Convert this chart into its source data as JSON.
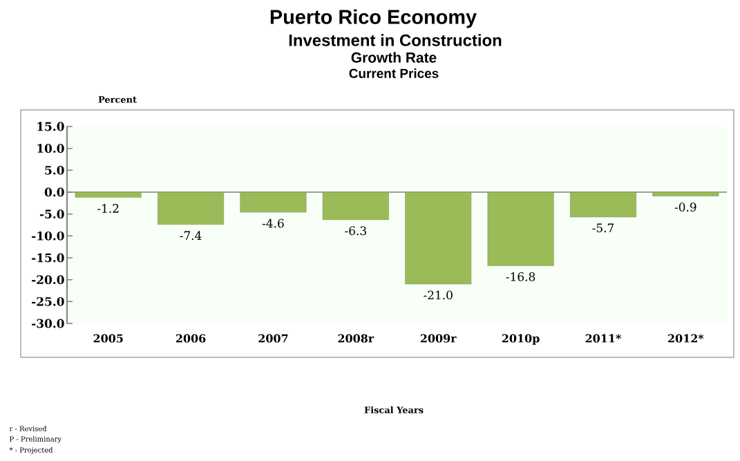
{
  "chart_data": {
    "type": "bar",
    "title": "Puerto Rico Economy",
    "subtitle": "Investment in Construction",
    "annotations": [
      "Growth Rate",
      "Current Prices",
      "Percent",
      "Fiscal Years",
      "r - Revised",
      "P - Preliminary",
      "* - Projected"
    ],
    "categories": [
      "2005",
      "2006",
      "2007",
      "2008r",
      "2009r",
      "2010p",
      "2011*",
      "2012*"
    ],
    "values": [
      -1.2,
      -7.4,
      -4.6,
      -6.3,
      -21.0,
      -16.8,
      -5.7,
      -0.9
    ],
    "value_labels": [
      "-1.2",
      "-7.4",
      "-4.6",
      "-6.3",
      "-21.0",
      "-16.8",
      "-5.7",
      "-0.9"
    ],
    "color": "#9bbb59",
    "ylim": [
      -30,
      15
    ],
    "yticks": [
      {
        "value": 15,
        "label": "15.0"
      },
      {
        "value": 10,
        "label": "10.0"
      },
      {
        "value": 5,
        "label": "5.0"
      },
      {
        "value": 0,
        "label": "0.0"
      },
      {
        "value": -5,
        "label": "-5.0"
      },
      {
        "value": -10,
        "label": "-10.0"
      },
      {
        "value": -15,
        "label": "-15.0"
      },
      {
        "value": -20,
        "label": "-20.0"
      },
      {
        "value": -25,
        "label": "-25.0"
      },
      {
        "value": -30,
        "label": "-30.0"
      }
    ]
  }
}
